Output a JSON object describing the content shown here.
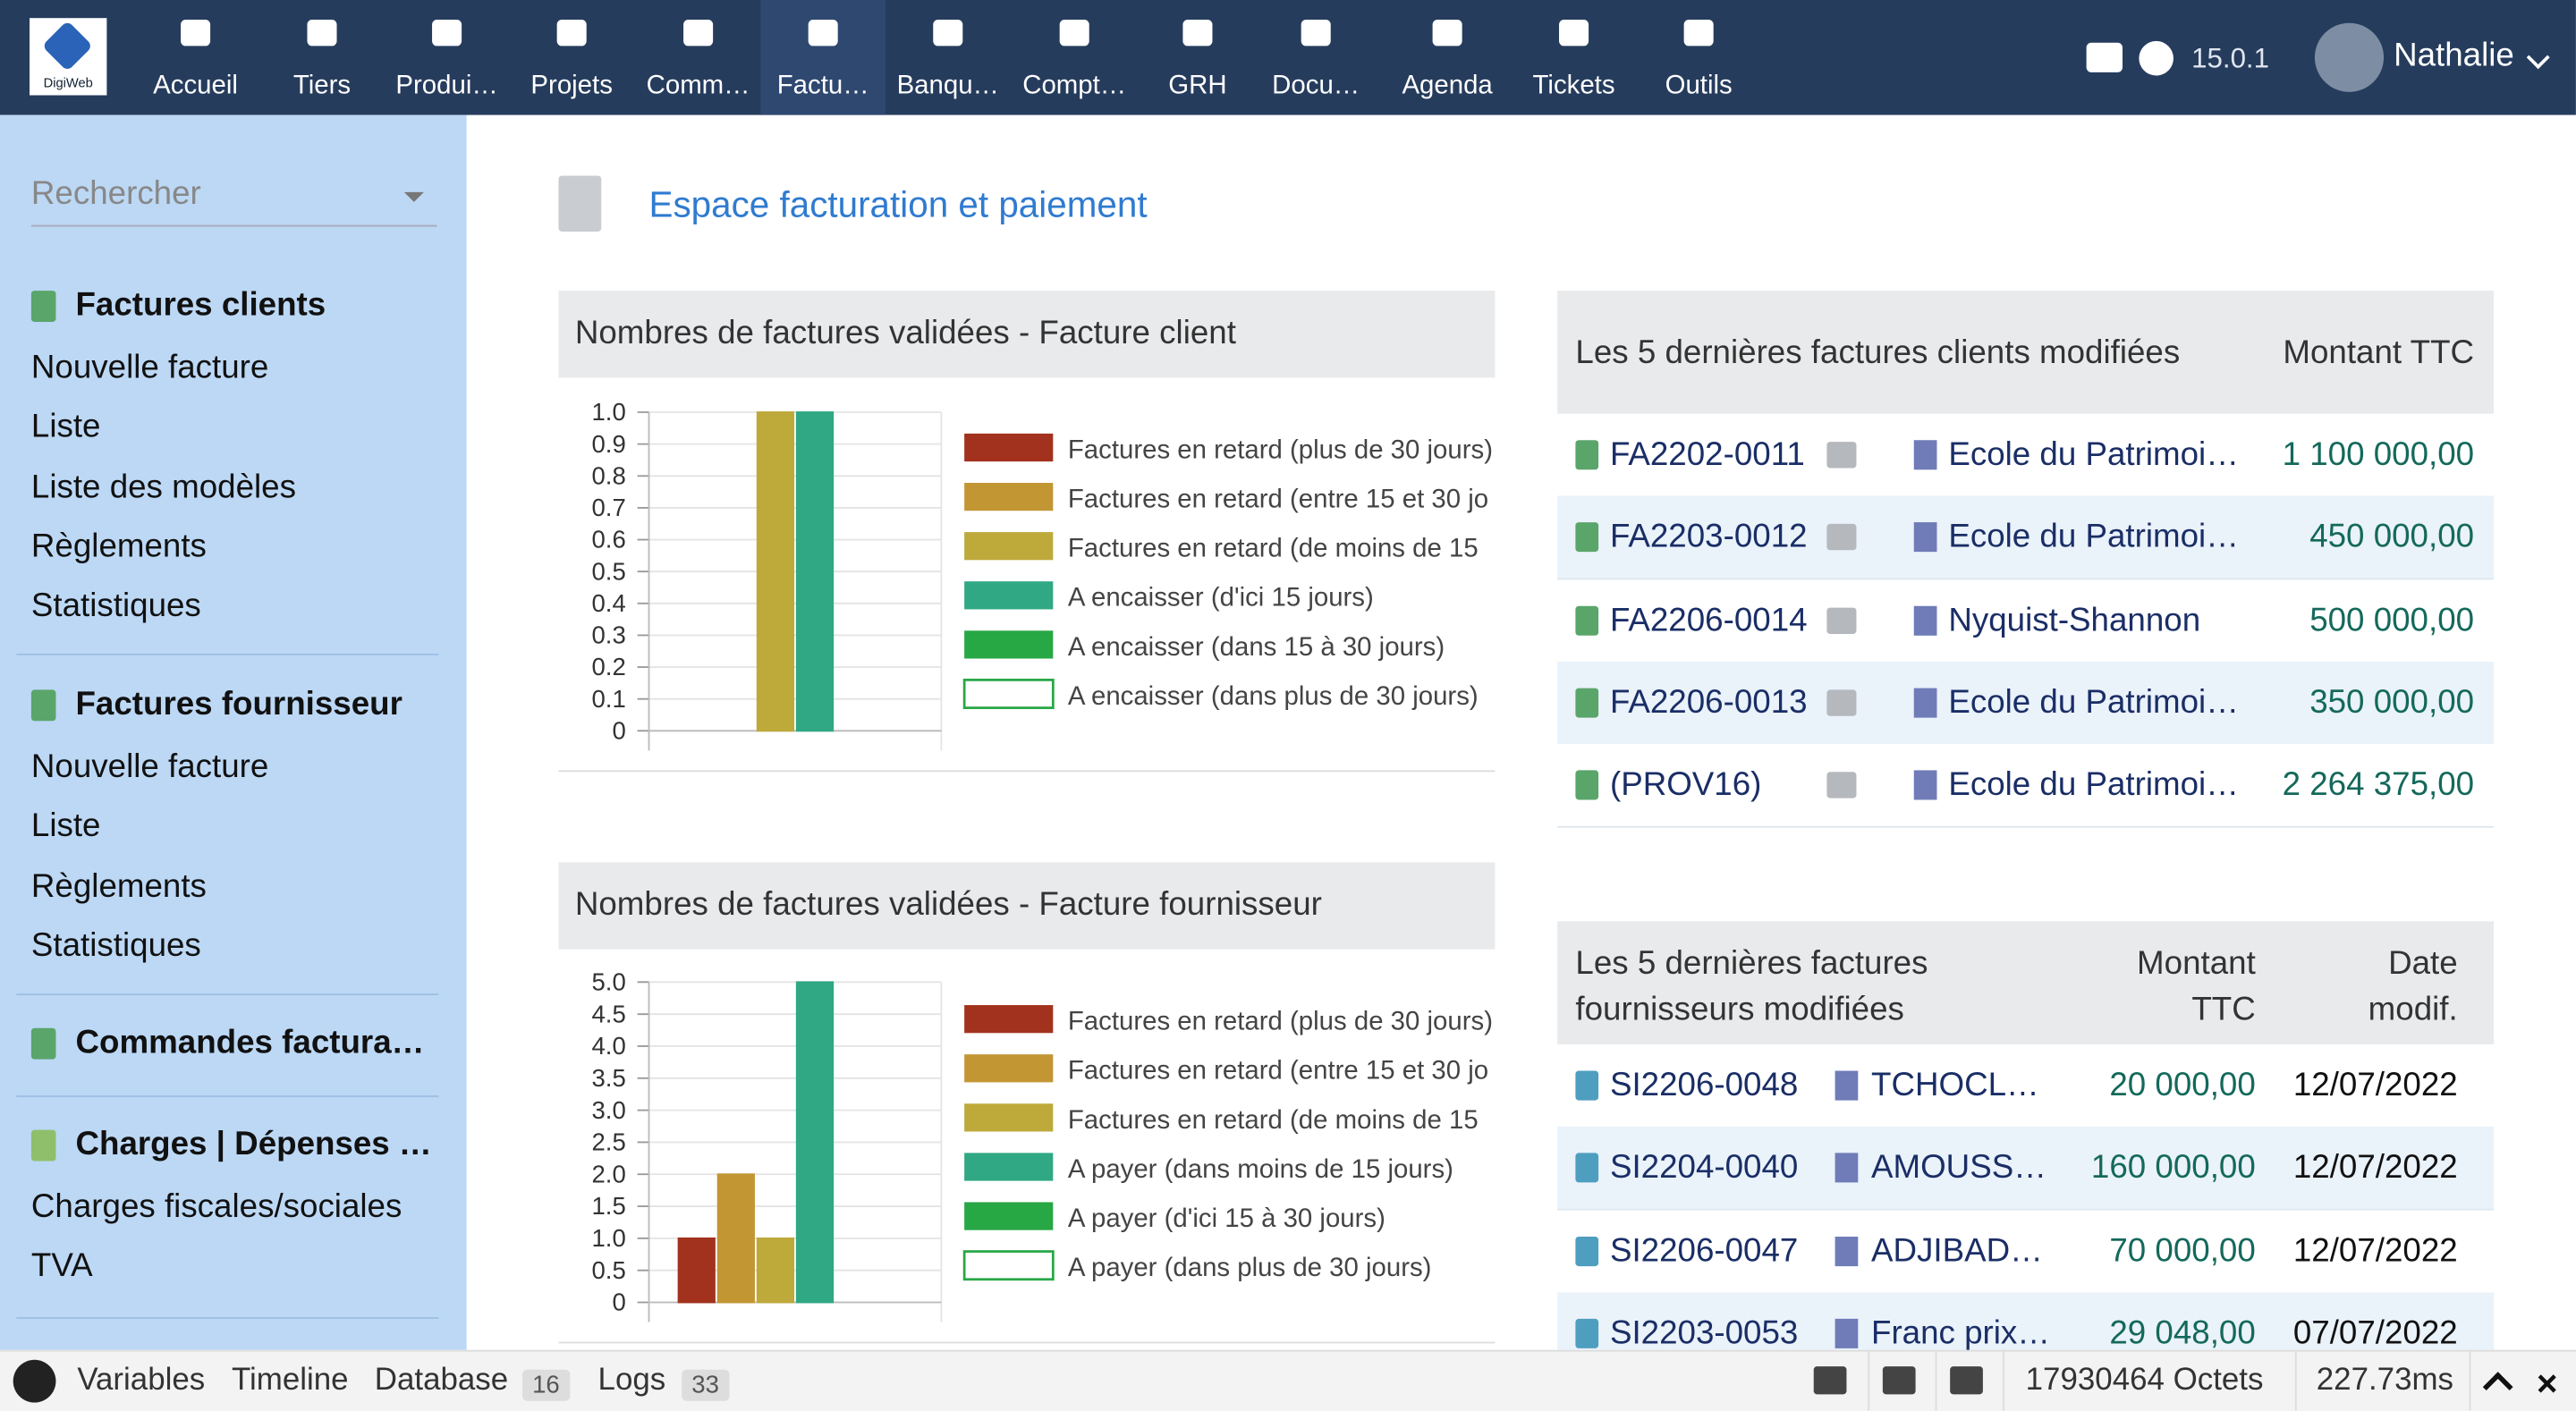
{
  "topbar": {
    "logo": "DigiWeb",
    "menu": [
      "Accueil",
      "Tiers",
      "Produi…",
      "Projets",
      "Comm…",
      "Factu…",
      "Banqu…",
      "Compt…",
      "GRH",
      "Docu…",
      "Agenda",
      "Tickets",
      "Outils"
    ],
    "version": "15.0.1",
    "user": "Nathalie"
  },
  "sidebar": {
    "search": "Rechercher",
    "sections": [
      {
        "title": "Factures clients",
        "items": [
          "Nouvelle facture",
          "Liste",
          "Liste des modèles",
          "Règlements",
          "Statistiques"
        ]
      },
      {
        "title": "Factures fournisseur",
        "items": [
          "Nouvelle facture",
          "Liste",
          "Règlements",
          "Statistiques"
        ]
      },
      {
        "title": "Commandes factura…",
        "items": []
      },
      {
        "title": "Charges | Dépenses …",
        "items": [
          "Charges fiscales/sociales",
          "TVA"
        ]
      }
    ]
  },
  "header": {
    "title": "Espace facturation et paiement"
  },
  "chart_data": [
    {
      "type": "bar",
      "title": "Nombres de factures validées - Facture client",
      "categories": [
        null
      ],
      "ylim": [
        0,
        1
      ],
      "yticks": [
        0,
        0.1,
        0.2,
        0.3,
        0.4,
        0.5,
        0.6,
        0.7,
        0.8,
        0.9,
        {
          "value": 1,
          "label": "1.0"
        }
      ],
      "grid": true,
      "legend": "right",
      "series": [
        {
          "name": "Factures en retard (plus de 30 jours)",
          "color": "#a2321d",
          "values": [
            0
          ]
        },
        {
          "name": "Factures en retard (entre 15 et 30 jo",
          "color": "#c39634",
          "values": [
            0
          ]
        },
        {
          "name": "Factures en retard (de moins de 15",
          "color": "#bea93b",
          "values": [
            1
          ]
        },
        {
          "name": "A encaisser (d'ici 15 jours)",
          "color": "#2fa883",
          "values": [
            1
          ]
        },
        {
          "name": "A encaisser (dans 15 à 30 jours)",
          "color": "#28a745",
          "values": [
            0
          ]
        },
        {
          "name": "A encaisser (dans plus de 30 jours)",
          "color": "#ffffff",
          "edgecolor": "#28a745",
          "values": [
            0
          ]
        }
      ]
    },
    {
      "type": "bar",
      "title": "Nombres de factures validées - Facture fournisseur",
      "categories": [
        null
      ],
      "ylim": [
        0,
        5
      ],
      "yticks": [
        0,
        0.5,
        {
          "value": 1,
          "label": "1.0"
        },
        1.5,
        {
          "value": 2,
          "label": "2.0"
        },
        2.5,
        {
          "value": 3,
          "label": "3.0"
        },
        3.5,
        {
          "value": 4,
          "label": "4.0"
        },
        4.5,
        {
          "value": 5,
          "label": "5.0"
        }
      ],
      "grid": true,
      "legend": "right",
      "series": [
        {
          "name": "Factures en retard (plus de 30 jours)",
          "color": "#a2321d",
          "values": [
            1
          ]
        },
        {
          "name": "Factures en retard (entre 15 et 30 jo",
          "color": "#c39634",
          "values": [
            2
          ]
        },
        {
          "name": "Factures en retard (de moins de 15",
          "color": "#bea93b",
          "values": [
            1
          ]
        },
        {
          "name": "A payer (dans moins de 15 jours)",
          "color": "#2fa883",
          "values": [
            5
          ]
        },
        {
          "name": "A payer (d'ici 15 à 30 jours)",
          "color": "#28a745",
          "values": [
            0
          ]
        },
        {
          "name": "A payer (dans plus de 30 jours)",
          "color": "#ffffff",
          "edgecolor": "#28a745",
          "values": [
            0
          ]
        }
      ]
    }
  ],
  "client_table": {
    "header": [
      "Les 5 dernières factures clients modifiées",
      "Montant TTC"
    ],
    "rows": [
      [
        "FA2202-0011",
        "Ecole du Patrimoi…",
        "1 100 000,00"
      ],
      [
        "FA2203-0012",
        "Ecole du Patrimoi…",
        "450 000,00"
      ],
      [
        "FA2206-0014",
        "Nyquist-Shannon",
        "500 000,00"
      ],
      [
        "FA2206-0013",
        "Ecole du Patrimoi…",
        "350 000,00"
      ],
      [
        "(PROV16)",
        "Ecole du Patrimoi…",
        "2 264 375,00"
      ]
    ]
  },
  "supplier_table": {
    "header": [
      "Les 5 dernières factures fournisseurs modifiées",
      "Montant TTC",
      "Date modif."
    ],
    "rows": [
      [
        "SI2206-0048",
        "TCHOCL…",
        "20 000,00",
        "12/07/2022"
      ],
      [
        "SI2204-0040",
        "AMOUSS…",
        "160 000,00",
        "12/07/2022"
      ],
      [
        "SI2206-0047",
        "ADJIBAD…",
        "70 000,00",
        "12/07/2022"
      ],
      [
        "SI2203-0053",
        "Franc prix…",
        "29 048,00",
        "07/07/2022"
      ]
    ]
  },
  "debugbar": {
    "tabs": [
      "Variables",
      "Timeline",
      "Database",
      "Logs"
    ],
    "database_count": "16",
    "logs_count": "33",
    "memory": "17930464 Octets",
    "time": "227.73ms"
  }
}
